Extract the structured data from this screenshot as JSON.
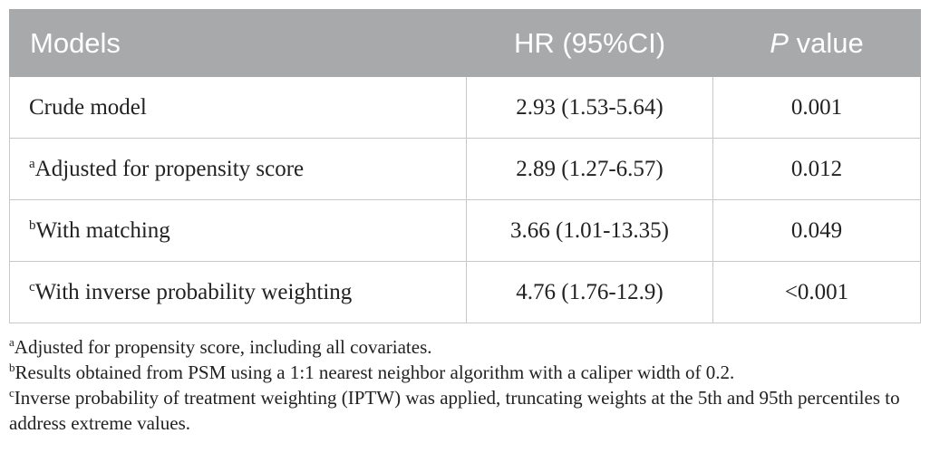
{
  "table": {
    "headers": {
      "models": "Models",
      "hr": "HR (95%CI)",
      "p_italic": "P",
      "p_rest": " value"
    },
    "rows": [
      {
        "sup": "",
        "model": "Crude model",
        "hr": "2.93 (1.53-5.64)",
        "p": "0.001"
      },
      {
        "sup": "a",
        "model": "Adjusted for propensity score",
        "hr": "2.89 (1.27-6.57)",
        "p": "0.012"
      },
      {
        "sup": "b",
        "model": "With matching",
        "hr": "3.66 (1.01-13.35)",
        "p": "0.049"
      },
      {
        "sup": "c",
        "model": "With inverse probability weighting",
        "hr": "4.76 (1.76-12.9)",
        "p": "<0.001"
      }
    ]
  },
  "footnotes": [
    {
      "sup": "a",
      "text": "Adjusted for propensity score, including all covariates."
    },
    {
      "sup": "b",
      "text": "Results obtained from PSM using a 1:1 nearest neighbor algorithm with a caliper width of 0.2."
    },
    {
      "sup": "c",
      "text": "Inverse probability of treatment weighting (IPTW) was applied, truncating weights at the 5th and 95th percentiles to address extreme values."
    }
  ]
}
